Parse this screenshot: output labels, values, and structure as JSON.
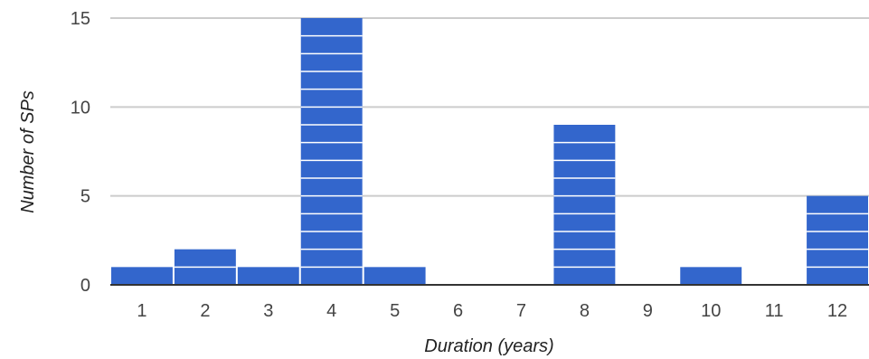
{
  "chart_data": {
    "type": "bar",
    "categories": [
      "1",
      "2",
      "3",
      "4",
      "5",
      "6",
      "7",
      "8",
      "9",
      "10",
      "11",
      "12"
    ],
    "values": [
      1,
      2,
      1,
      15,
      1,
      0,
      0,
      9,
      0,
      1,
      0,
      5
    ],
    "xlabel": "Duration (years)",
    "ylabel": "Number of SPs",
    "ylim": [
      0,
      15
    ],
    "yticks": [
      0,
      5,
      10,
      15
    ],
    "grid": true,
    "bar_color": "#3366cc",
    "bars_segmented_per_unit": true
  }
}
